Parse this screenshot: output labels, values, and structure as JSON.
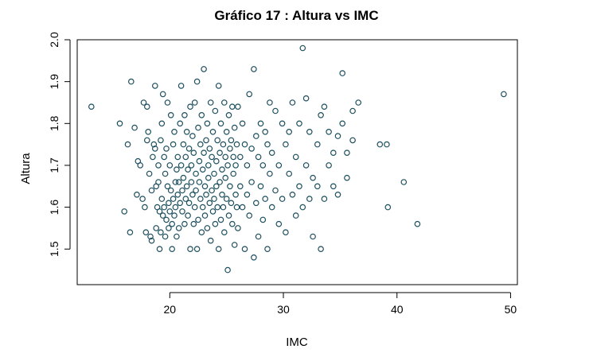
{
  "chart_data": {
    "type": "scatter",
    "title": "Gráfico 17 : Altura vs IMC",
    "xlabel": "IMC",
    "ylabel": "Altura",
    "xlim": [
      11.85,
      50.6
    ],
    "ylim": [
      1.415,
      2.0
    ],
    "xticks": [
      20,
      30,
      40,
      50
    ],
    "yticks": [
      1.5,
      1.6,
      1.7,
      1.8,
      1.9,
      2.0
    ],
    "ytick_labels": [
      "1.5",
      "1.6",
      "1.7",
      "1.8",
      "1.9",
      "2.0"
    ],
    "grid": false,
    "marker": "open-circle",
    "marker_color": "#1d4f5e",
    "points": [
      [
        13.1,
        1.84
      ],
      [
        15.6,
        1.8
      ],
      [
        16.0,
        1.59
      ],
      [
        16.3,
        1.75
      ],
      [
        16.5,
        1.54
      ],
      [
        16.6,
        1.9
      ],
      [
        16.9,
        1.79
      ],
      [
        17.1,
        1.63
      ],
      [
        17.2,
        1.71
      ],
      [
        17.4,
        1.7
      ],
      [
        17.6,
        1.62
      ],
      [
        17.7,
        1.85
      ],
      [
        17.8,
        1.6
      ],
      [
        17.9,
        1.54
      ],
      [
        18.0,
        1.76
      ],
      [
        18.0,
        1.84
      ],
      [
        18.1,
        1.78
      ],
      [
        18.2,
        1.68
      ],
      [
        18.3,
        1.53
      ],
      [
        18.4,
        1.52
      ],
      [
        18.4,
        1.64
      ],
      [
        18.5,
        1.72
      ],
      [
        18.6,
        1.75
      ],
      [
        18.7,
        1.89
      ],
      [
        18.7,
        1.74
      ],
      [
        18.8,
        1.65
      ],
      [
        18.8,
        1.55
      ],
      [
        18.9,
        1.6
      ],
      [
        19.0,
        1.66
      ],
      [
        19.0,
        1.7
      ],
      [
        19.1,
        1.59
      ],
      [
        19.1,
        1.5
      ],
      [
        19.2,
        1.76
      ],
      [
        19.2,
        1.54
      ],
      [
        19.3,
        1.8
      ],
      [
        19.3,
        1.62
      ],
      [
        19.4,
        1.58
      ],
      [
        19.4,
        1.87
      ],
      [
        19.5,
        1.72
      ],
      [
        19.5,
        1.6
      ],
      [
        19.6,
        1.53
      ],
      [
        19.6,
        1.68
      ],
      [
        19.7,
        1.74
      ],
      [
        19.7,
        1.57
      ],
      [
        19.8,
        1.85
      ],
      [
        19.8,
        1.65
      ],
      [
        19.9,
        1.61
      ],
      [
        19.9,
        1.55
      ],
      [
        20.0,
        1.7
      ],
      [
        20.0,
        1.59
      ],
      [
        20.1,
        1.82
      ],
      [
        20.1,
        1.64
      ],
      [
        20.2,
        1.5
      ],
      [
        20.2,
        1.56
      ],
      [
        20.3,
        1.75
      ],
      [
        20.3,
        1.62
      ],
      [
        20.4,
        1.78
      ],
      [
        20.4,
        1.58
      ],
      [
        20.5,
        1.66
      ],
      [
        20.5,
        1.6
      ],
      [
        20.6,
        1.69
      ],
      [
        20.6,
        1.53
      ],
      [
        20.7,
        1.72
      ],
      [
        20.7,
        1.63
      ],
      [
        20.8,
        1.55
      ],
      [
        20.8,
        1.66
      ],
      [
        20.9,
        1.8
      ],
      [
        20.9,
        1.61
      ],
      [
        21.0,
        1.89
      ],
      [
        21.0,
        1.7
      ],
      [
        21.1,
        1.64
      ],
      [
        21.1,
        1.59
      ],
      [
        21.2,
        1.75
      ],
      [
        21.2,
        1.67
      ],
      [
        21.3,
        1.82
      ],
      [
        21.3,
        1.56
      ],
      [
        21.4,
        1.62
      ],
      [
        21.4,
        1.72
      ],
      [
        21.5,
        1.78
      ],
      [
        21.5,
        1.65
      ],
      [
        21.6,
        1.58
      ],
      [
        21.6,
        1.69
      ],
      [
        21.7,
        1.74
      ],
      [
        21.7,
        1.61
      ],
      [
        21.8,
        1.84
      ],
      [
        21.8,
        1.5
      ],
      [
        21.9,
        1.66
      ],
      [
        21.9,
        1.7
      ],
      [
        22.0,
        1.63
      ],
      [
        22.0,
        1.77
      ],
      [
        22.1,
        1.56
      ],
      [
        22.1,
        1.73
      ],
      [
        22.2,
        1.85
      ],
      [
        22.2,
        1.6
      ],
      [
        22.3,
        1.68
      ],
      [
        22.3,
        1.64
      ],
      [
        22.4,
        1.9
      ],
      [
        22.4,
        1.5
      ],
      [
        22.5,
        1.79
      ],
      [
        22.5,
        1.57
      ],
      [
        22.6,
        1.71
      ],
      [
        22.6,
        1.66
      ],
      [
        22.7,
        1.75
      ],
      [
        22.7,
        1.62
      ],
      [
        22.8,
        1.82
      ],
      [
        22.8,
        1.54
      ],
      [
        22.9,
        1.69
      ],
      [
        22.9,
        1.6
      ],
      [
        23.0,
        1.93
      ],
      [
        23.0,
        1.73
      ],
      [
        23.1,
        1.65
      ],
      [
        23.1,
        1.58
      ],
      [
        23.2,
        1.76
      ],
      [
        23.2,
        1.63
      ],
      [
        23.3,
        1.8
      ],
      [
        23.3,
        1.55
      ],
      [
        23.4,
        1.7
      ],
      [
        23.4,
        1.67
      ],
      [
        23.5,
        1.74
      ],
      [
        23.5,
        1.61
      ],
      [
        23.6,
        1.85
      ],
      [
        23.6,
        1.52
      ],
      [
        23.7,
        1.72
      ],
      [
        23.7,
        1.64
      ],
      [
        23.8,
        1.78
      ],
      [
        23.8,
        1.59
      ],
      [
        23.9,
        1.68
      ],
      [
        23.9,
        1.62
      ],
      [
        24.0,
        1.83
      ],
      [
        24.0,
        1.56
      ],
      [
        24.1,
        1.71
      ],
      [
        24.1,
        1.65
      ],
      [
        24.2,
        1.76
      ],
      [
        24.2,
        1.6
      ],
      [
        24.3,
        1.89
      ],
      [
        24.3,
        1.5
      ],
      [
        24.4,
        1.73
      ],
      [
        24.4,
        1.66
      ],
      [
        24.5,
        1.8
      ],
      [
        24.5,
        1.57
      ],
      [
        24.6,
        1.69
      ],
      [
        24.6,
        1.63
      ],
      [
        24.7,
        1.75
      ],
      [
        24.7,
        1.6
      ],
      [
        24.8,
        1.85
      ],
      [
        24.8,
        1.54
      ],
      [
        24.9,
        1.72
      ],
      [
        24.9,
        1.67
      ],
      [
        25.0,
        1.78
      ],
      [
        25.0,
        1.62
      ],
      [
        25.1,
        1.45
      ],
      [
        25.1,
        1.7
      ],
      [
        25.2,
        1.82
      ],
      [
        25.2,
        1.58
      ],
      [
        25.3,
        1.74
      ],
      [
        25.3,
        1.65
      ],
      [
        25.4,
        1.76
      ],
      [
        25.4,
        1.61
      ],
      [
        25.5,
        1.84
      ],
      [
        25.5,
        1.56
      ],
      [
        25.6,
        1.72
      ],
      [
        25.6,
        1.68
      ],
      [
        25.7,
        1.79
      ],
      [
        25.7,
        1.51
      ],
      [
        25.8,
        1.7
      ],
      [
        25.8,
        1.63
      ],
      [
        25.9,
        1.75
      ],
      [
        25.9,
        1.6
      ],
      [
        26.0,
        1.84
      ],
      [
        26.0,
        1.55
      ],
      [
        26.2,
        1.72
      ],
      [
        26.2,
        1.65
      ],
      [
        26.4,
        1.8
      ],
      [
        26.4,
        1.6
      ],
      [
        26.6,
        1.75
      ],
      [
        26.6,
        1.5
      ],
      [
        26.8,
        1.7
      ],
      [
        26.8,
        1.63
      ],
      [
        27.0,
        1.87
      ],
      [
        27.0,
        1.58
      ],
      [
        27.2,
        1.74
      ],
      [
        27.2,
        1.66
      ],
      [
        27.4,
        1.93
      ],
      [
        27.4,
        1.48
      ],
      [
        27.6,
        1.77
      ],
      [
        27.6,
        1.61
      ],
      [
        27.8,
        1.72
      ],
      [
        27.8,
        1.53
      ],
      [
        28.0,
        1.8
      ],
      [
        28.0,
        1.65
      ],
      [
        28.2,
        1.7
      ],
      [
        28.2,
        1.57
      ],
      [
        28.4,
        1.78
      ],
      [
        28.4,
        1.62
      ],
      [
        28.6,
        1.75
      ],
      [
        28.6,
        1.5
      ],
      [
        28.8,
        1.68
      ],
      [
        28.8,
        1.85
      ],
      [
        29.0,
        1.73
      ],
      [
        29.0,
        1.6
      ],
      [
        29.3,
        1.83
      ],
      [
        29.3,
        1.64
      ],
      [
        29.6,
        1.7
      ],
      [
        29.6,
        1.56
      ],
      [
        29.9,
        1.8
      ],
      [
        29.9,
        1.62
      ],
      [
        30.2,
        1.75
      ],
      [
        30.2,
        1.54
      ],
      [
        30.5,
        1.68
      ],
      [
        30.5,
        1.78
      ],
      [
        30.8,
        1.85
      ],
      [
        30.8,
        1.63
      ],
      [
        31.1,
        1.72
      ],
      [
        31.1,
        1.58
      ],
      [
        31.4,
        1.8
      ],
      [
        31.4,
        1.65
      ],
      [
        31.7,
        1.98
      ],
      [
        31.7,
        1.6
      ],
      [
        32.0,
        1.7
      ],
      [
        32.0,
        1.86
      ],
      [
        32.3,
        1.78
      ],
      [
        32.3,
        1.62
      ],
      [
        32.6,
        1.67
      ],
      [
        32.6,
        1.53
      ],
      [
        33.0,
        1.75
      ],
      [
        33.0,
        1.65
      ],
      [
        33.3,
        1.5
      ],
      [
        33.3,
        1.82
      ],
      [
        33.6,
        1.84
      ],
      [
        33.6,
        1.62
      ],
      [
        34.0,
        1.7
      ],
      [
        34.0,
        1.78
      ],
      [
        34.4,
        1.73
      ],
      [
        34.4,
        1.65
      ],
      [
        34.8,
        1.77
      ],
      [
        34.8,
        1.63
      ],
      [
        35.2,
        1.92
      ],
      [
        35.2,
        1.8
      ],
      [
        35.6,
        1.67
      ],
      [
        35.6,
        1.73
      ],
      [
        36.1,
        1.76
      ],
      [
        36.1,
        1.83
      ],
      [
        36.6,
        1.85
      ],
      [
        38.5,
        1.75
      ],
      [
        39.1,
        1.75
      ],
      [
        39.2,
        1.6
      ],
      [
        40.6,
        1.66
      ],
      [
        41.8,
        1.56
      ],
      [
        49.4,
        1.87
      ]
    ]
  }
}
